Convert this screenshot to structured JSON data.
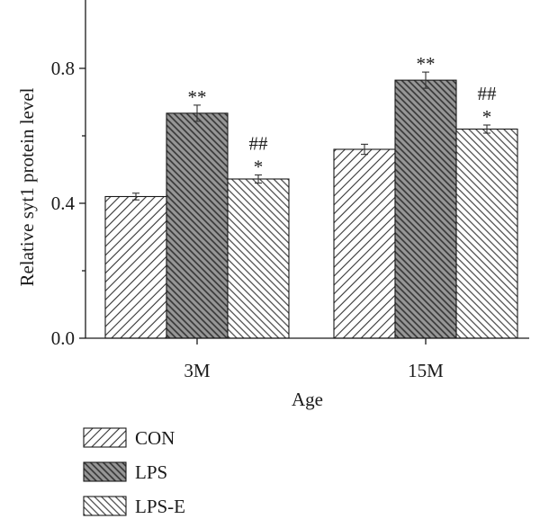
{
  "chart_data": {
    "type": "bar",
    "categories": [
      "3M",
      "15M"
    ],
    "series": [
      {
        "name": "CON",
        "values": [
          0.42,
          0.56
        ],
        "errors": [
          0.01,
          0.015
        ],
        "annotations": [
          [],
          []
        ],
        "fill": "#ffffff",
        "hatch": "#333333"
      },
      {
        "name": "LPS",
        "values": [
          0.667,
          0.765
        ],
        "errors": [
          0.024,
          0.024
        ],
        "annotations": [
          [
            "**"
          ],
          [
            "**"
          ]
        ],
        "fill": "#969696",
        "hatch": "#333333"
      },
      {
        "name": "LPS-E",
        "values": [
          0.472,
          0.62
        ],
        "errors": [
          0.012,
          0.012
        ],
        "annotations": [
          [
            "##",
            "*"
          ],
          [
            "##",
            "*"
          ]
        ],
        "fill": "#ffffff",
        "hatch": "#333333"
      }
    ],
    "xlabel": "Age",
    "ylabel": "Relative syt1 protein level",
    "ylim": [
      0,
      1.0
    ],
    "yticks": [
      0.0,
      0.4,
      0.8
    ],
    "ytick_labels": [
      "0.0",
      "0.4",
      "0.8"
    ],
    "grid": false,
    "legend": "bottom-left"
  }
}
